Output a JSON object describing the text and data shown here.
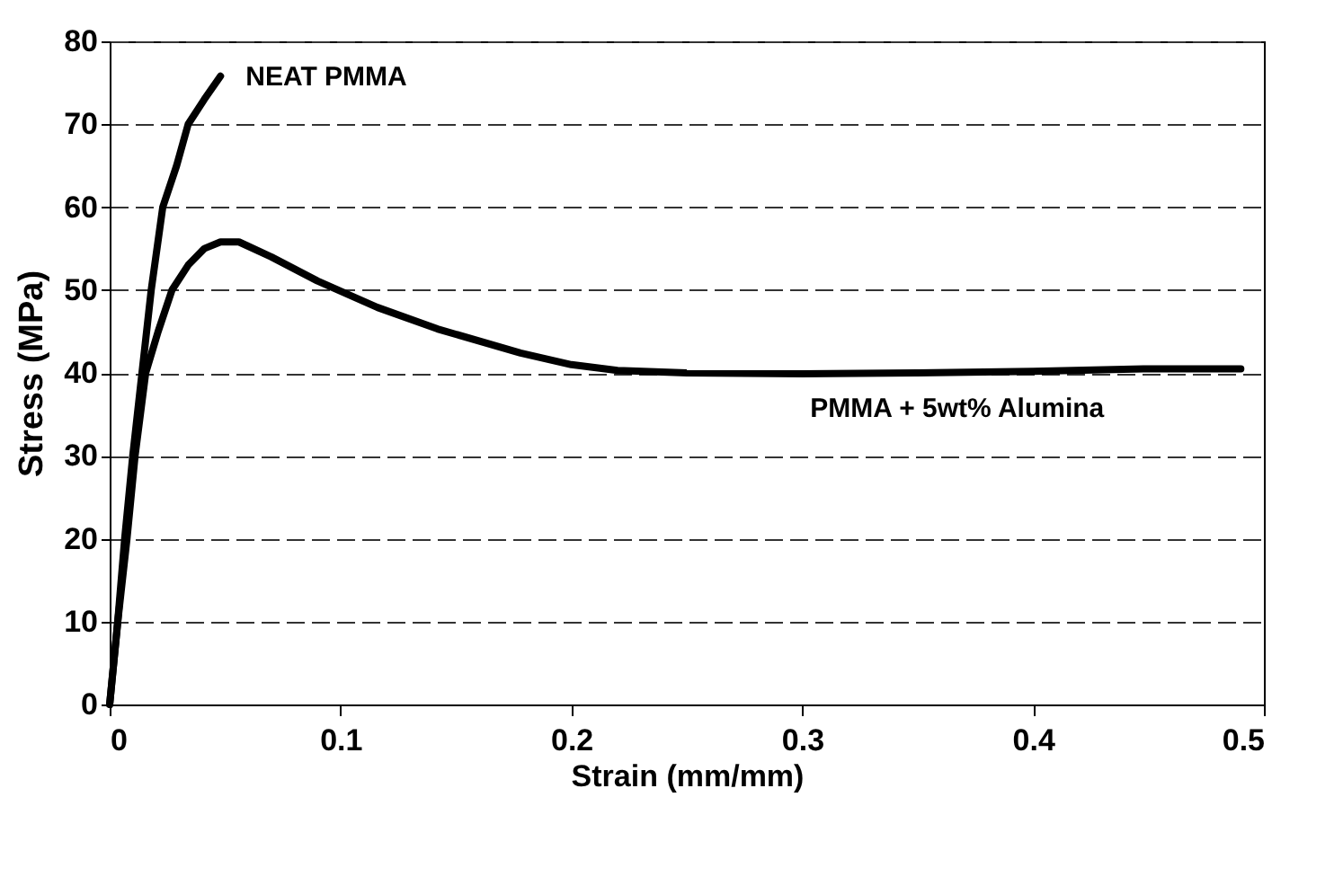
{
  "chart_data": {
    "type": "line",
    "xlabel": "Strain (mm/mm)",
    "ylabel": "Stress (MPa)",
    "xlim": [
      0,
      0.5
    ],
    "xticks": [
      0,
      0.1,
      0.2,
      0.3,
      0.4,
      0.5
    ],
    "ylim": [
      0,
      80
    ],
    "yticks": [
      0,
      10,
      20,
      30,
      40,
      50,
      60,
      70,
      80
    ],
    "grid": "y",
    "line_style": "solid",
    "marker": "none",
    "series": [
      {
        "name": "NEAT PMMA",
        "color": "#000000",
        "x": [
          0,
          0.0035,
          0.0065,
          0.01,
          0.014,
          0.018,
          0.023,
          0.029,
          0.034,
          0.041,
          0.048
        ],
        "values": [
          0,
          10,
          20,
          30,
          40,
          50,
          60,
          65,
          70,
          73,
          75.8
        ]
      },
      {
        "name": "PMMA + 5wt% Alumina",
        "color": "#000000",
        "x": [
          0,
          0.0035,
          0.0075,
          0.011,
          0.0156,
          0.021,
          0.027,
          0.034,
          0.041,
          0.048,
          0.056,
          0.07,
          0.09,
          0.116,
          0.142,
          0.178,
          0.2,
          0.22,
          0.25,
          0.3,
          0.35,
          0.4,
          0.45,
          0.49
        ],
        "values": [
          0,
          10,
          20,
          30,
          40,
          45,
          50,
          53,
          55,
          55.8,
          55.8,
          54,
          51.1,
          47.9,
          45.3,
          42.4,
          41,
          40.3,
          40,
          39.9,
          40,
          40.2,
          40.5,
          40.5
        ]
      }
    ]
  }
}
